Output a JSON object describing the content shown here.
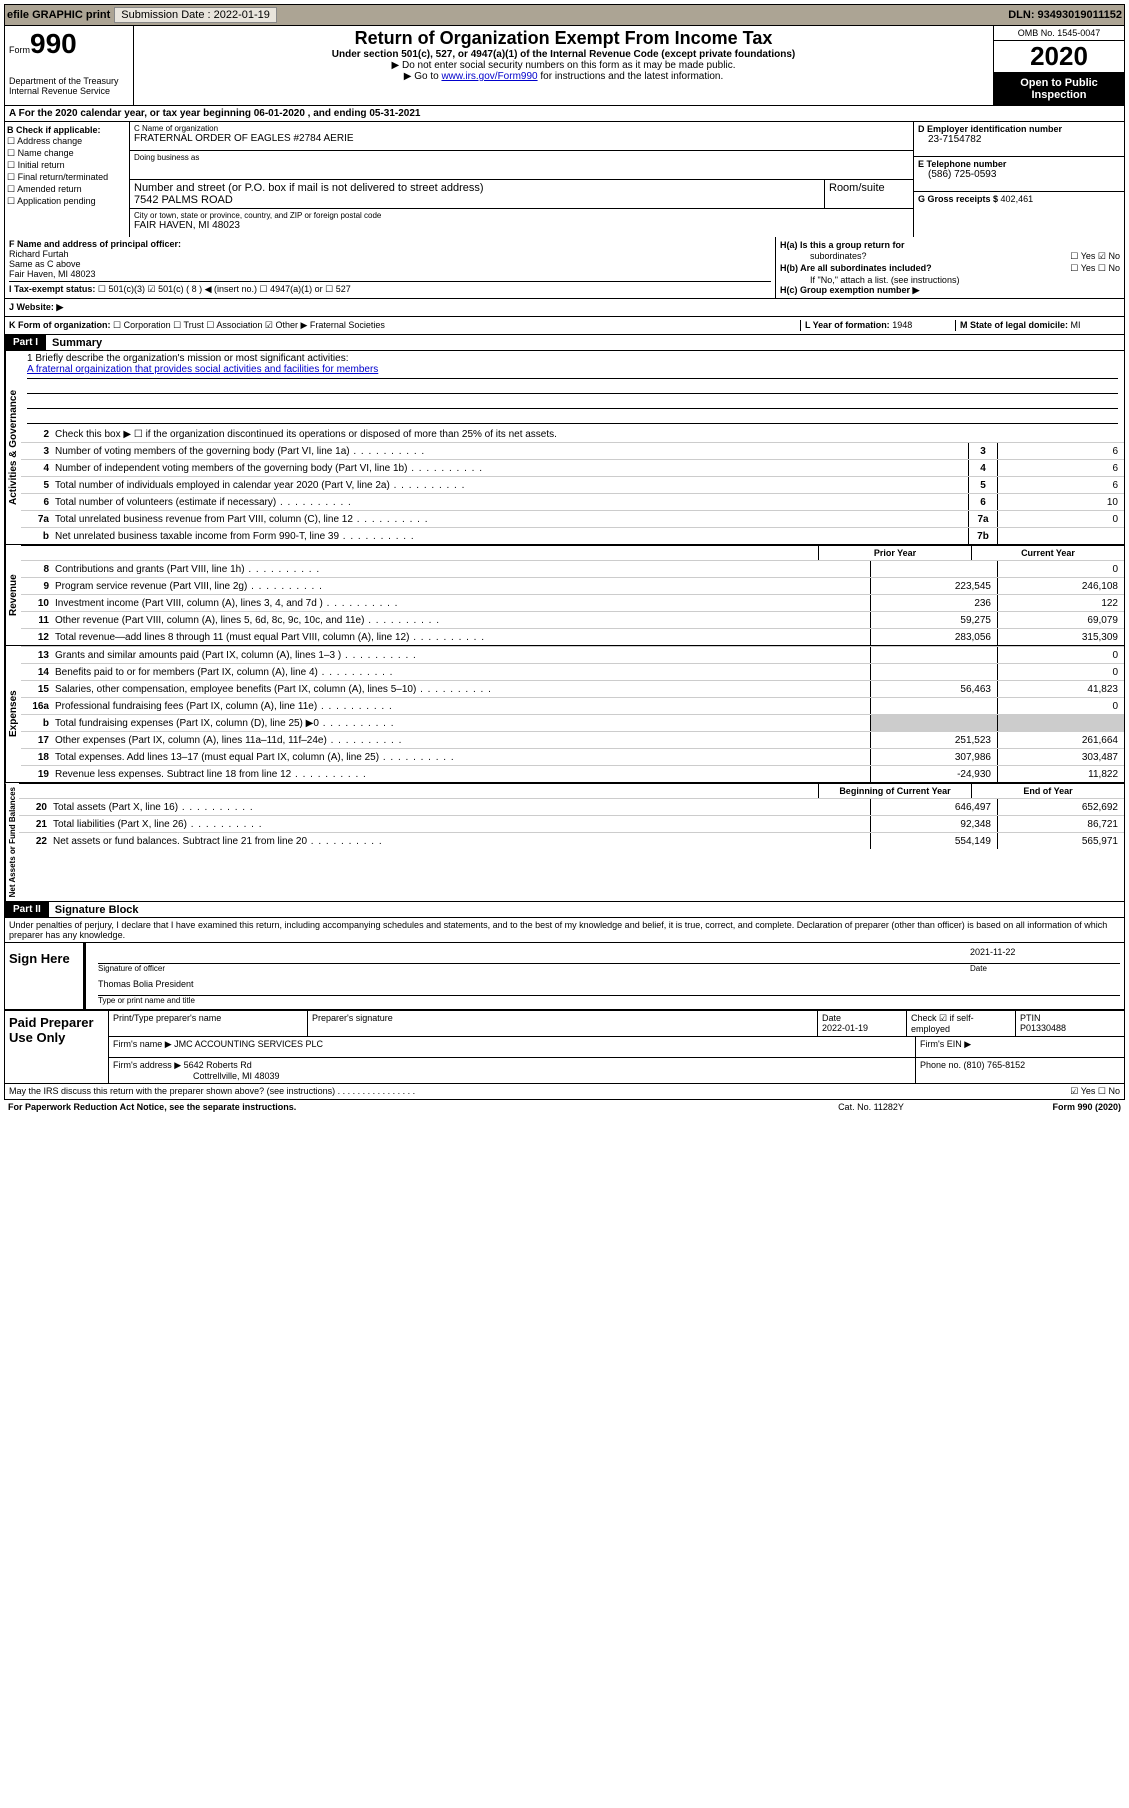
{
  "header": {
    "efile_label": "efile GRAPHIC print",
    "submission_label": "Submission Date : 2022-01-19",
    "dln": "DLN: 93493019011152"
  },
  "top": {
    "form_word": "Form",
    "form_no": "990",
    "dept": "Department of the Treasury",
    "irs": "Internal Revenue Service",
    "title": "Return of Organization Exempt From Income Tax",
    "sub1": "Under section 501(c), 527, or 4947(a)(1) of the Internal Revenue Code (except private foundations)",
    "sub2": "▶ Do not enter social security numbers on this form as it may be made public.",
    "sub3_pre": "▶ Go to ",
    "sub3_link": "www.irs.gov/Form990",
    "sub3_post": " for instructions and the latest information.",
    "omb": "OMB No. 1545-0047",
    "year": "2020",
    "open": "Open to Public Inspection"
  },
  "section_a": "A   For the 2020 calendar year, or tax year beginning 06-01-2020    , and ending 05-31-2021",
  "box_b": {
    "label": "B Check if applicable:",
    "addr_change": "Address change",
    "name_change": "Name change",
    "initial": "Initial return",
    "final": "Final return/terminated",
    "amended": "Amended return",
    "app_pending": "Application pending"
  },
  "box_c": {
    "name_lbl": "C Name of organization",
    "name": "FRATERNAL ORDER OF EAGLES #2784 AERIE",
    "dba_lbl": "Doing business as",
    "street_lbl": "Number and street (or P.O. box if mail is not delivered to street address)",
    "room_lbl": "Room/suite",
    "street": "7542 PALMS ROAD",
    "city_lbl": "City or town, state or province, country, and ZIP or foreign postal code",
    "city": "FAIR HAVEN, MI  48023"
  },
  "box_d": {
    "ein_lbl": "D Employer identification number",
    "ein": "23-7154782",
    "phone_lbl": "E Telephone number",
    "phone": "(586) 725-0593",
    "gross_lbl": "G Gross receipts $ ",
    "gross": "402,461"
  },
  "box_f": {
    "lbl": "F Name and address of principal officer:",
    "name": "Richard Furtah",
    "l2": "Same as C above",
    "l3": "Fair Haven, MI  48023"
  },
  "box_h": {
    "a_lbl": "H(a)  Is this a group return for",
    "a_sub": "subordinates?",
    "b_lbl": "H(b)  Are all subordinates included?",
    "b_note": "If \"No,\" attach a list. (see instructions)",
    "c_lbl": "H(c)  Group exemption number ▶",
    "yes": "Yes",
    "no": "No"
  },
  "box_i": {
    "lbl": "I    Tax-exempt status:",
    "o1": "501(c)(3)",
    "o2": "501(c) ( 8 ) ◀ (insert no.)",
    "o3": "4947(a)(1) or",
    "o4": "527"
  },
  "box_j": "J   Website: ▶",
  "box_k": {
    "lbl": "K Form of organization:",
    "corp": "Corporation",
    "trust": "Trust",
    "assoc": "Association",
    "other": "Other ▶",
    "other_val": "Fraternal Societies",
    "l_lbl": "L Year of formation: ",
    "l_val": "1948",
    "m_lbl": "M State of legal domicile: ",
    "m_val": "MI"
  },
  "part1": {
    "header": "Part I",
    "title": "Summary",
    "vert1": "Activities & Governance",
    "vert2": "Revenue",
    "vert3": "Expenses",
    "vert4": "Net Assets or Fund Balances",
    "l1_lbl": "1   Briefly describe the organization's mission or most significant activities:",
    "l1_val": "A fraternal orgainization that provides social activities and facilities for members",
    "l2": "Check this box ▶ ☐  if the organization discontinued its operations or disposed of more than 25% of its net assets.",
    "lines_gov": [
      {
        "n": "3",
        "d": "Number of voting members of the governing body (Part VI, line 1a)",
        "b": "3",
        "v": "6"
      },
      {
        "n": "4",
        "d": "Number of independent voting members of the governing body (Part VI, line 1b)",
        "b": "4",
        "v": "6"
      },
      {
        "n": "5",
        "d": "Total number of individuals employed in calendar year 2020 (Part V, line 2a)",
        "b": "5",
        "v": "6"
      },
      {
        "n": "6",
        "d": "Total number of volunteers (estimate if necessary)",
        "b": "6",
        "v": "10"
      },
      {
        "n": "7a",
        "d": "Total unrelated business revenue from Part VIII, column (C), line 12",
        "b": "7a",
        "v": "0"
      },
      {
        "n": "b",
        "d": "Net unrelated business taxable income from Form 990-T, line 39",
        "b": "7b",
        "v": ""
      }
    ],
    "col_prior": "Prior Year",
    "col_current": "Current Year",
    "lines_rev": [
      {
        "n": "8",
        "d": "Contributions and grants (Part VIII, line 1h)",
        "p": "",
        "c": "0"
      },
      {
        "n": "9",
        "d": "Program service revenue (Part VIII, line 2g)",
        "p": "223,545",
        "c": "246,108"
      },
      {
        "n": "10",
        "d": "Investment income (Part VIII, column (A), lines 3, 4, and 7d )",
        "p": "236",
        "c": "122"
      },
      {
        "n": "11",
        "d": "Other revenue (Part VIII, column (A), lines 5, 6d, 8c, 9c, 10c, and 11e)",
        "p": "59,275",
        "c": "69,079"
      },
      {
        "n": "12",
        "d": "Total revenue—add lines 8 through 11 (must equal Part VIII, column (A), line 12)",
        "p": "283,056",
        "c": "315,309"
      }
    ],
    "lines_exp": [
      {
        "n": "13",
        "d": "Grants and similar amounts paid (Part IX, column (A), lines 1–3 )",
        "p": "",
        "c": "0"
      },
      {
        "n": "14",
        "d": "Benefits paid to or for members (Part IX, column (A), line 4)",
        "p": "",
        "c": "0"
      },
      {
        "n": "15",
        "d": "Salaries, other compensation, employee benefits (Part IX, column (A), lines 5–10)",
        "p": "56,463",
        "c": "41,823"
      },
      {
        "n": "16a",
        "d": "Professional fundraising fees (Part IX, column (A), line 11e)",
        "p": "",
        "c": "0"
      },
      {
        "n": "b",
        "d": "Total fundraising expenses (Part IX, column (D), line 25) ▶0",
        "p": "__SHADE__",
        "c": "__SHADE__"
      },
      {
        "n": "17",
        "d": "Other expenses (Part IX, column (A), lines 11a–11d, 11f–24e)",
        "p": "251,523",
        "c": "261,664"
      },
      {
        "n": "18",
        "d": "Total expenses. Add lines 13–17 (must equal Part IX, column (A), line 25)",
        "p": "307,986",
        "c": "303,487"
      },
      {
        "n": "19",
        "d": "Revenue less expenses. Subtract line 18 from line 12",
        "p": "-24,930",
        "c": "11,822"
      }
    ],
    "col_begin": "Beginning of Current Year",
    "col_end": "End of Year",
    "lines_net": [
      {
        "n": "20",
        "d": "Total assets (Part X, line 16)",
        "p": "646,497",
        "c": "652,692"
      },
      {
        "n": "21",
        "d": "Total liabilities (Part X, line 26)",
        "p": "92,348",
        "c": "86,721"
      },
      {
        "n": "22",
        "d": "Net assets or fund balances. Subtract line 21 from line 20",
        "p": "554,149",
        "c": "565,971"
      }
    ]
  },
  "part2": {
    "header": "Part II",
    "title": "Signature Block",
    "penalty": "Under penalties of perjury, I declare that I have examined this return, including accompanying schedules and statements, and to the best of my knowledge and belief, it is true, correct, and complete. Declaration of preparer (other than officer) is based on all information of which preparer has any knowledge.",
    "sign_here": "Sign Here",
    "sig_officer_lbl": "Signature of officer",
    "sig_date": "2021-11-22",
    "date_lbl": "Date",
    "sig_name": "Thomas Bolia  President",
    "sig_name_lbl": "Type or print name and title",
    "paid_prep": "Paid Preparer Use Only",
    "prep_name_lbl": "Print/Type preparer's name",
    "prep_sig_lbl": "Preparer's signature",
    "prep_date_lbl": "Date",
    "prep_date": "2022-01-19",
    "prep_check_lbl": "Check ☑ if self-employed",
    "ptin_lbl": "PTIN",
    "ptin": "P01330488",
    "firm_name_lbl": "Firm's name    ▶ ",
    "firm_name": "JMC ACCOUNTING SERVICES PLC",
    "firm_ein_lbl": "Firm's EIN ▶",
    "firm_addr_lbl": "Firm's address ▶ ",
    "firm_addr1": "5642 Roberts Rd",
    "firm_addr2": "Cottrellville, MI  48039",
    "firm_phone_lbl": "Phone no. ",
    "firm_phone": "(810) 765-8152",
    "discuss": "May the IRS discuss this return with the preparer shown above? (see instructions)",
    "discuss_yes": "Yes",
    "discuss_no": "No"
  },
  "footer": {
    "pra": "For Paperwork Reduction Act Notice, see the separate instructions.",
    "cat": "Cat. No. 11282Y",
    "form": "Form 990 (2020)"
  }
}
